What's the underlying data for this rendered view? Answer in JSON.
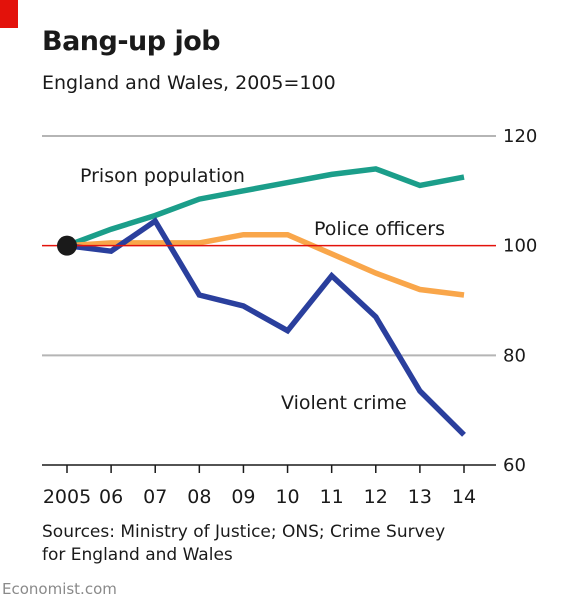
{
  "header": {
    "title": "Bang-up job",
    "subtitle": "England and Wales, 2005=100"
  },
  "footer": {
    "source_line1": "Sources: Ministry of Justice; ONS; Crime Survey",
    "source_line2": "for England and Wales",
    "brand": "Economist.com"
  },
  "chart_data": {
    "type": "line",
    "title": "Bang-up job",
    "subtitle": "England and Wales, 2005=100",
    "x": [
      2005,
      2006,
      2007,
      2008,
      2009,
      2010,
      2011,
      2012,
      2013,
      2014
    ],
    "xticklabels": [
      "2005",
      "06",
      "07",
      "08",
      "09",
      "10",
      "11",
      "12",
      "13",
      "14"
    ],
    "ylim": [
      60,
      120
    ],
    "yticks": [
      60,
      80,
      100,
      120
    ],
    "yaxis_side": "right",
    "grid": true,
    "baseline": 100,
    "series": [
      {
        "name": "Prison population",
        "color": "#1b9e8a",
        "values": [
          100,
          103,
          105.5,
          108.5,
          110,
          111.5,
          113,
          114,
          111,
          112.5
        ]
      },
      {
        "name": "Police officers",
        "color": "#f9a64a",
        "values": [
          100,
          100.5,
          100.5,
          100.5,
          102,
          102,
          98.5,
          95,
          92,
          91
        ]
      },
      {
        "name": "Violent crime",
        "color": "#2a3f9d",
        "values": [
          100,
          99,
          104.5,
          91,
          89,
          84.5,
          94.5,
          87,
          73.5,
          65.5
        ]
      }
    ],
    "origin_marker_color": "#1a1a1a",
    "baseline_color": "#e3120b"
  }
}
